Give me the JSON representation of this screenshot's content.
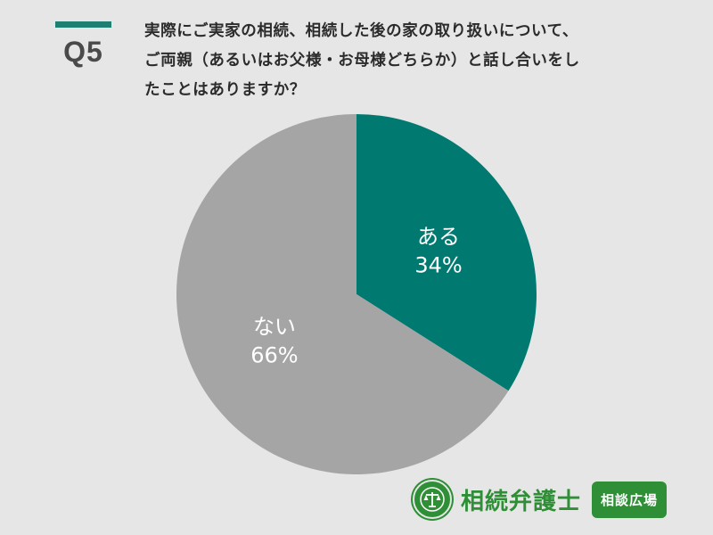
{
  "header": {
    "q_label": "Q5",
    "question_line1": "実際にご実家の相続、相続した後の家の取り扱いについて、",
    "question_line2": "ご両親（あるいはお父様・お母様どちらか）と話し合いをし",
    "question_line3": "たことはありますか？"
  },
  "chart_data": {
    "type": "pie",
    "slices": [
      {
        "label": "ある",
        "value": 34,
        "value_label": "34%",
        "color": "#007a70"
      },
      {
        "label": "ない",
        "value": 66,
        "value_label": "66%",
        "color": "#a5a5a5"
      }
    ],
    "start": "12 o'clock",
    "direction": "clockwise"
  },
  "brand": {
    "name": "相続弁護士",
    "badge": "相談広場",
    "emblem_icon": "scales-icon",
    "color": "#2f8f36"
  },
  "colors": {
    "background": "#e6e6e6",
    "accent": "#1f7f73"
  }
}
